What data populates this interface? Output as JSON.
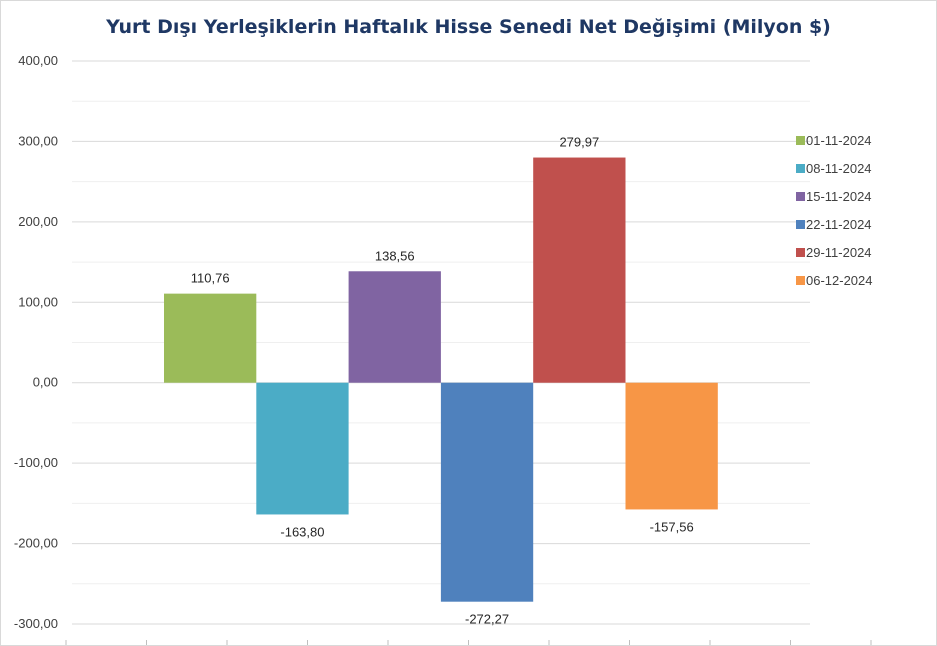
{
  "chart_data": {
    "type": "bar",
    "title": "Yurt Dışı Yerleşiklerin Haftalık Hisse Senedi Net Değişimi (Milyon $)",
    "xlabel": "",
    "ylabel": "",
    "ylim": [
      -300,
      400
    ],
    "y_ticks": [
      400,
      300,
      200,
      100,
      0,
      -100,
      -200,
      -300
    ],
    "y_tick_labels": [
      "400,00",
      "300,00",
      "200,00",
      "100,00",
      "0,00",
      "-100,00",
      "-200,00",
      "-300,00"
    ],
    "grid": true,
    "legend_position": "right",
    "series": [
      {
        "name": "01-11-2024",
        "value": 110.76,
        "label": "110,76",
        "color": "#9bbb59"
      },
      {
        "name": "08-11-2024",
        "value": -163.8,
        "label": "-163,80",
        "color": "#4bacc6"
      },
      {
        "name": "15-11-2024",
        "value": 138.56,
        "label": "138,56",
        "color": "#8064a2"
      },
      {
        "name": "22-11-2024",
        "value": -272.27,
        "label": "-272,27",
        "color": "#4f81bd"
      },
      {
        "name": "29-11-2024",
        "value": 279.97,
        "label": "279,97",
        "color": "#c0504d"
      },
      {
        "name": "06-12-2024",
        "value": -157.56,
        "label": "-157,56",
        "color": "#f79646"
      }
    ]
  }
}
